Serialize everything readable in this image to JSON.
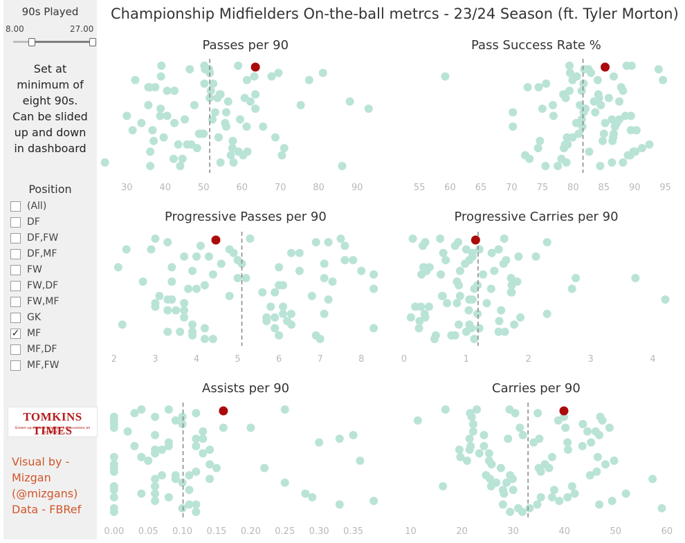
{
  "title": "Championship Midfielders On-the-ball metrcs - 23/24 Season (ft. Tyler Morton)",
  "filter": {
    "slider_label": "90s Played",
    "min_label": "8.00",
    "max_label": "27.00",
    "note": "Set at minimum of eight 90s. Can be slided up and down in dashboard"
  },
  "position": {
    "title": "Position",
    "options": [
      {
        "label": "(All)",
        "checked": false
      },
      {
        "label": "DF",
        "checked": false
      },
      {
        "label": "DF,FW",
        "checked": false
      },
      {
        "label": "DF,MF",
        "checked": false
      },
      {
        "label": "FW",
        "checked": false
      },
      {
        "label": "FW,DF",
        "checked": false
      },
      {
        "label": "FW,MF",
        "checked": false
      },
      {
        "label": "GK",
        "checked": false
      },
      {
        "label": "MF",
        "checked": true
      },
      {
        "label": "MF,DF",
        "checked": false
      },
      {
        "label": "MF,FW",
        "checked": false
      }
    ]
  },
  "logo": {
    "name": "TOMKINS TIMES",
    "tagline": "Grown-up news & intelligent discussions on Liverpool FC"
  },
  "credits": [
    "Visual by -",
    "Mizgan",
    "(@mizgans)",
    "Data - FBRef"
  ],
  "colors": {
    "points": "#b9e3d6",
    "highlight": "#aa0a0a",
    "average_line": "#8c8c8c"
  },
  "chart_data": [
    {
      "type": "scatter",
      "title": "Passes per 90",
      "xlim": [
        24,
        97
      ],
      "ticks": [
        "30",
        "40",
        "50",
        "60",
        "70",
        "80",
        "90"
      ],
      "tick_values": [
        30,
        40,
        50,
        60,
        70,
        80,
        90
      ],
      "average": 51.6,
      "highlight": 63.5,
      "values": [
        50.2,
        54.2,
        55.6,
        59.1,
        63.2,
        75.3,
        49.5,
        24.3,
        37.4,
        40.5,
        46.8,
        50.4,
        53.6,
        55.9,
        57.1,
        61.3,
        63.5,
        68.7,
        86.1,
        42.4,
        45.1,
        48.3,
        51.6,
        62.2,
        31.5,
        44.5,
        52.5,
        55.9,
        37.0,
        39.0,
        54.4,
        42.4,
        61.4,
        67.7,
        35.6,
        48.8,
        57.8,
        36.0,
        30.0,
        45.7,
        51.4,
        60.7,
        65.5,
        70.4,
        77.5,
        93.0,
        39.6,
        43.9,
        51.9,
        59.5,
        71.0,
        81.1,
        88.1,
        36.7,
        42.2,
        50.2,
        53.0,
        57.6,
        59.0,
        63.5,
        33.8,
        36.1,
        38.9,
        47.6,
        50.0,
        54.4,
        35.6,
        38.7,
        43.4,
        46.4,
        51.6,
        61.2,
        60.3,
        32.2,
        38.8,
        53.9,
        36.1,
        40.5,
        52.3,
        57.5,
        69.5,
        56.4
      ]
    },
    {
      "type": "scatter",
      "title": "Pass Success Rate %",
      "xlim": [
        51.5,
        96.5
      ],
      "ticks": [
        "55",
        "60",
        "65",
        "70",
        "75",
        "80",
        "85",
        "90",
        "95"
      ],
      "tick_values": [
        55,
        60,
        65,
        70,
        75,
        80,
        85,
        90,
        95
      ],
      "average": 81.6,
      "highlight": 85.2,
      "values": [
        70.2,
        74.6,
        79.4,
        84.1,
        85.2,
        89.8,
        59.2,
        76.7,
        80.9,
        86.3,
        87.8,
        89.4,
        79.1,
        82.5,
        84.2,
        86.8,
        88.9,
        84.0,
        81.9,
        79.0,
        77.5,
        81.4,
        86.3,
        78.5,
        82.9,
        87.5,
        90.3,
        78.1,
        81.7,
        83.6,
        86.4,
        89.5,
        78.4,
        87.1,
        90.1,
        80.6,
        84.5,
        86.6,
        78.9,
        74.4,
        88.5,
        92.4,
        93.9,
        78.8,
        81.5,
        89.3,
        94.6,
        75.0,
        79.9,
        84.4,
        88.1,
        87.5,
        74.3,
        79.5,
        83.4,
        89.4,
        72.9,
        75.6,
        81.7,
        84.8,
        88.7,
        78.5,
        80.5,
        82.6,
        86.6,
        81.1,
        85.0,
        88.1,
        72.6,
        76.8,
        78.7,
        81.8,
        85.8,
        70.2,
        72.2,
        79.9,
        82.0,
        86.5,
        75.5,
        79.4,
        81.4,
        91.2
      ]
    },
    {
      "type": "scatter",
      "title": "Progressive Passes per 90",
      "xlim": [
        1.75,
        8.55
      ],
      "ticks": [
        "2",
        "3",
        "4",
        "5",
        "6",
        "7",
        "8"
      ],
      "tick_values": [
        2,
        3,
        4,
        5,
        6,
        7,
        8
      ],
      "average": 5.1,
      "highlight": 4.47,
      "values": [
        3.9,
        4.3,
        6.1,
        7.1,
        7.5,
        6.0,
        6.8,
        2.2,
        2.3,
        7.1,
        3.0,
        3.9,
        5.0,
        4.0,
        5.7,
        6.9,
        6.5,
        7.2,
        8.3,
        6.3,
        7.3,
        3.7,
        4.2,
        4.6,
        5.9,
        5.7,
        4.1,
        4.4,
        3.7,
        3.6,
        4.0,
        4.2,
        6.3,
        3.0,
        3.4,
        4.8,
        6.3,
        2.9,
        5.2,
        6.1,
        6.0,
        7.8,
        3.8,
        5.9,
        7.2,
        8.0,
        3.3,
        4.2,
        4.9,
        2.7,
        3.3,
        4.4,
        5.1,
        5.6,
        6.2,
        7.6,
        8.3,
        3.0,
        3.3,
        3.7,
        6.0,
        6.1,
        5.3,
        2.1,
        3.1,
        3.9,
        4.8,
        5.0,
        5.8,
        6.9,
        7.6,
        8.3,
        3.7,
        3.3,
        3.9,
        3.4,
        5.9,
        6.5,
        3.4,
        3.5,
        7.0,
        7.1
      ]
    },
    {
      "type": "scatter",
      "title": "Progressive Carries per 90",
      "xlim": [
        -0.1,
        4.35
      ],
      "ticks": [
        "0",
        "1",
        "2",
        "3",
        "4"
      ],
      "tick_values": [
        0,
        1,
        2,
        3,
        4
      ],
      "average": 1.19,
      "highlight": 1.15,
      "values": [
        0.28,
        0.85,
        1.62,
        2.12,
        1.18,
        0.33,
        0.58,
        0.31,
        0.9,
        1.77,
        1.0,
        3.72,
        0.27,
        0.76,
        1.64,
        2.7,
        0.34,
        0.87,
        1.45,
        4.2,
        0.24,
        0.63,
        0.85,
        1.04,
        1.13,
        1.6,
        1.73,
        1.53,
        0.3,
        0.59,
        0.69,
        1.0,
        1.1,
        1.73,
        2.3,
        0.14,
        0.41,
        0.61,
        0.88,
        1.52,
        2.76,
        0.4,
        0.82,
        1.05,
        1.4,
        1.87,
        2.3,
        0.36,
        1.05,
        1.21,
        1.41,
        1.82,
        1.56,
        0.49,
        0.98,
        1.72,
        0.25,
        0.82,
        1.27,
        1.33,
        1.52,
        1.84,
        0.88,
        1.18,
        1.61,
        0.32,
        0.62,
        1.05,
        1.21,
        1.72,
        0.18,
        0.51,
        0.67,
        1.13,
        0.11,
        0.34,
        0.9,
        1.1,
        1.08,
        1.1
      ]
    },
    {
      "type": "scatter",
      "title": "Assists per 90",
      "xlim": [
        -0.015,
        0.395
      ],
      "ticks": [
        "0.00",
        "0.05",
        "0.10",
        "0.15",
        "0.20",
        "0.25",
        "0.30",
        "0.35"
      ],
      "tick_values": [
        0.0,
        0.05,
        0.1,
        0.15,
        0.2,
        0.25,
        0.3,
        0.35
      ],
      "average": 0.101,
      "highlight": 0.16,
      "values": [
        0.06,
        0.1,
        0.12,
        0.11,
        0.33,
        0.16,
        0.04,
        0.06,
        0.08,
        0.12,
        0.22,
        0.0,
        0.0,
        0.06,
        0.09,
        0.1,
        0.13,
        0.36,
        0.0,
        0.03,
        0.08,
        0.12,
        0.38,
        0.0,
        0.06,
        0.1,
        0.12,
        0.35,
        0.0,
        0.04,
        0.06,
        0.08,
        0.09,
        0.11,
        0.2,
        0.0,
        0.0,
        0.04,
        0.13,
        0.15,
        0.29,
        0.0,
        0.07,
        0.14,
        0.0,
        0.02,
        0.05,
        0.11,
        0.12,
        0.3,
        0.0,
        0.06,
        0.1,
        0.13,
        0.25,
        0.0,
        0.06,
        0.14,
        0.28,
        0.0,
        0.03,
        0.07,
        0.12,
        0.0,
        0.04,
        0.06,
        0.25,
        0.33,
        0.0,
        0.08,
        0.09,
        0.14,
        0.06
      ]
    },
    {
      "type": "scatter",
      "title": "Carries per 90",
      "xlim": [
        7.5,
        61.5
      ],
      "ticks": [
        "10",
        "20",
        "30",
        "40",
        "50",
        "60"
      ],
      "tick_values": [
        10,
        20,
        30,
        40,
        50,
        60
      ],
      "average": 32.9,
      "highlight": 39.9,
      "values": [
        24.3,
        25.8,
        28.2,
        39.9,
        43.5,
        45.0,
        46.8,
        48.8,
        19.7,
        25.7,
        29.3,
        35.1,
        37.0,
        40.6,
        11.4,
        21.5,
        29.9,
        33.2,
        44.5,
        49.7,
        28.0,
        30.4,
        34.0,
        35.4,
        39.0,
        43.6,
        23.4,
        26.7,
        29.4,
        31.9,
        36.2,
        42.0,
        47.0,
        21.7,
        24.7,
        28.0,
        31.3,
        37.6,
        41.5,
        16.8,
        21.5,
        27.6,
        35.4,
        38.8,
        40.7,
        57.2,
        59.0,
        22.2,
        25.3,
        30.0,
        34.8,
        40.6,
        46.3,
        49.3,
        22.2,
        25.3,
        28.7,
        31.8,
        46.8,
        48.0,
        52.0,
        21.9,
        24.3,
        29.4,
        34.7,
        40.2,
        46.5,
        16.3,
        22.9,
        29.0,
        35.0,
        37.6,
        47.4,
        19.5,
        25.5,
        31.0,
        46.1,
        21.0,
        38.0,
        21.6,
        45.2
      ]
    }
  ]
}
